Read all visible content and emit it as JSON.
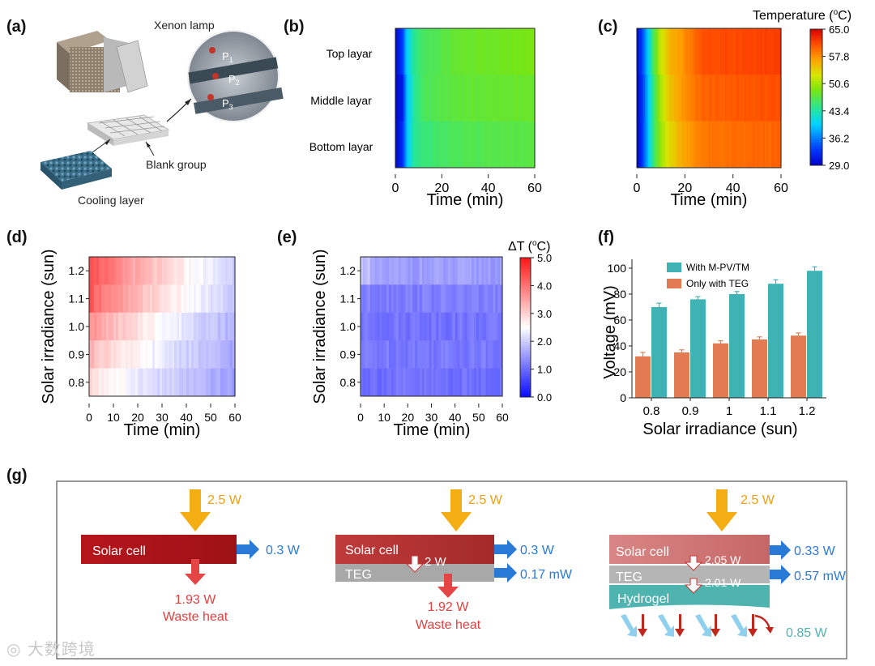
{
  "panels": {
    "a": "(a)",
    "b": "(b)",
    "c": "(c)",
    "d": "(d)",
    "e": "(e)",
    "f": "(f)",
    "g": "(g)"
  },
  "panel_a": {
    "xenon_lamp": "Xenon  lamp",
    "blank_group": "Blank group",
    "cooling_layer": "Cooling layer",
    "probes": [
      "P",
      "P",
      "P"
    ],
    "probe_subs": [
      "1",
      "2",
      "3"
    ]
  },
  "chart_data": [
    {
      "id": "b",
      "type": "heatmap",
      "title": "",
      "xlabel": "Time (min)",
      "ylabel": "",
      "rows": [
        "Top layar",
        "Middle layar",
        "Bottom layar"
      ],
      "xlim": [
        0,
        60
      ],
      "xticks": [
        "0",
        "20",
        "40",
        "60"
      ],
      "colorbar": {
        "title": "Temperature",
        "unit": "(",
        "sup": "o",
        "unit_end": "C)",
        "range": [
          29.0,
          65.0
        ],
        "ticks": [
          "65.0",
          "57.8",
          "50.6",
          "43.4",
          "36.2",
          "29.0"
        ]
      },
      "profiles": {
        "time": [
          0,
          3,
          5,
          8,
          12,
          20,
          30,
          60
        ],
        "top": [
          29.5,
          33,
          40,
          44,
          46,
          47,
          48,
          49
        ],
        "middle": [
          29.5,
          31,
          39,
          44,
          46,
          47,
          47.5,
          48
        ],
        "bottom": [
          30,
          32,
          39,
          44,
          45,
          46,
          46.5,
          47
        ]
      }
    },
    {
      "id": "c",
      "type": "heatmap",
      "title": "",
      "xlabel": "Time (min)",
      "ylabel": "",
      "xlim": [
        0,
        60
      ],
      "xticks": [
        "0",
        "20",
        "40",
        "60"
      ],
      "profiles": {
        "time": [
          0,
          2,
          4,
          7,
          10,
          14,
          20,
          28,
          60
        ],
        "top": [
          29.5,
          33,
          38,
          46,
          52,
          56,
          58,
          61,
          62
        ],
        "middle": [
          29.5,
          32,
          37,
          45,
          51,
          55,
          58,
          60,
          61
        ],
        "bottom": [
          30,
          32,
          37,
          45,
          50,
          54,
          57,
          59,
          60
        ]
      }
    },
    {
      "id": "d",
      "type": "heatmap",
      "title": "",
      "xlabel": "Time (min)",
      "ylabel": "Solar irradiance (sun)",
      "xlim": [
        0,
        60
      ],
      "xticks": [
        "0",
        "10",
        "20",
        "30",
        "40",
        "50",
        "60"
      ],
      "yticks": [
        "1.2",
        "1.1",
        "1.0",
        "0.9",
        "0.8"
      ],
      "rows": [
        1.2,
        1.1,
        1.0,
        0.9,
        0.8
      ],
      "colorbar": {
        "title": "ΔT (",
        "sup": "o",
        "unit_end": "C)",
        "range": [
          0,
          5
        ],
        "ticks": [
          "5.0",
          "4.0",
          "3.0",
          "2.0",
          "1.0",
          "0.0"
        ]
      },
      "start_dT": [
        4.6,
        4.4,
        3.8,
        3.4,
        3.0
      ],
      "end_dT": [
        2.0,
        1.9,
        1.7,
        1.6,
        1.5
      ]
    },
    {
      "id": "e",
      "type": "heatmap",
      "title": "",
      "xlabel": "Time (min)",
      "ylabel": "Solar irradiance (sun)",
      "xlim": [
        0,
        60
      ],
      "xticks": [
        "0",
        "10",
        "20",
        "30",
        "40",
        "50",
        "60"
      ],
      "yticks": [
        "1.2",
        "1.1",
        "1.0",
        "0.9",
        "0.8"
      ],
      "rows": [
        1.2,
        1.1,
        1.0,
        0.9,
        0.8
      ],
      "base_dT": [
        1.5,
        1.2,
        1.1,
        1.15,
        1.05
      ]
    },
    {
      "id": "f",
      "type": "bar",
      "title": "",
      "xlabel": "Solar irradiance (sun)",
      "ylabel": "Voltage (mV)",
      "categories": [
        "0.8",
        "0.9",
        "1",
        "1.1",
        "1.2"
      ],
      "ylim": [
        0,
        100
      ],
      "yticks": [
        "0",
        "20",
        "40",
        "60",
        "80",
        "100"
      ],
      "legend_position": "top-left",
      "series": [
        {
          "name": "With M-PV/TM",
          "color": "#3fb3b3",
          "values": [
            70,
            76,
            80,
            88,
            98
          ],
          "errors": [
            3,
            2,
            2,
            3,
            3
          ]
        },
        {
          "name": "Only with TEG",
          "color": "#e27b52",
          "values": [
            32,
            35,
            42,
            45,
            48
          ],
          "errors": [
            3,
            2,
            2,
            2,
            2
          ]
        }
      ]
    }
  ],
  "panel_g": {
    "input1": "2.5 W",
    "solar1": "Solar cell",
    "out1": "0.3 W",
    "waste1": "1.93 W",
    "waste1_label": "Waste heat",
    "input2": "2.5 W",
    "solar2": "Solar cell",
    "teg2": "TEG",
    "mid2": "2 W",
    "out2a": "0.3 W",
    "out2b": "0.17 mW",
    "waste2": "1.92 W",
    "waste2_label": "Waste heat",
    "input3": "2.5 W",
    "solar3": "Solar cell",
    "teg3": "TEG",
    "hydrogel3": "Hydrogel",
    "mid3a": "2.05 W",
    "mid3b": "2.01 W",
    "out3a": "0.33 W",
    "out3b": "0.57 mW",
    "evap3": "0.85 W"
  },
  "watermark": "大数跨境"
}
